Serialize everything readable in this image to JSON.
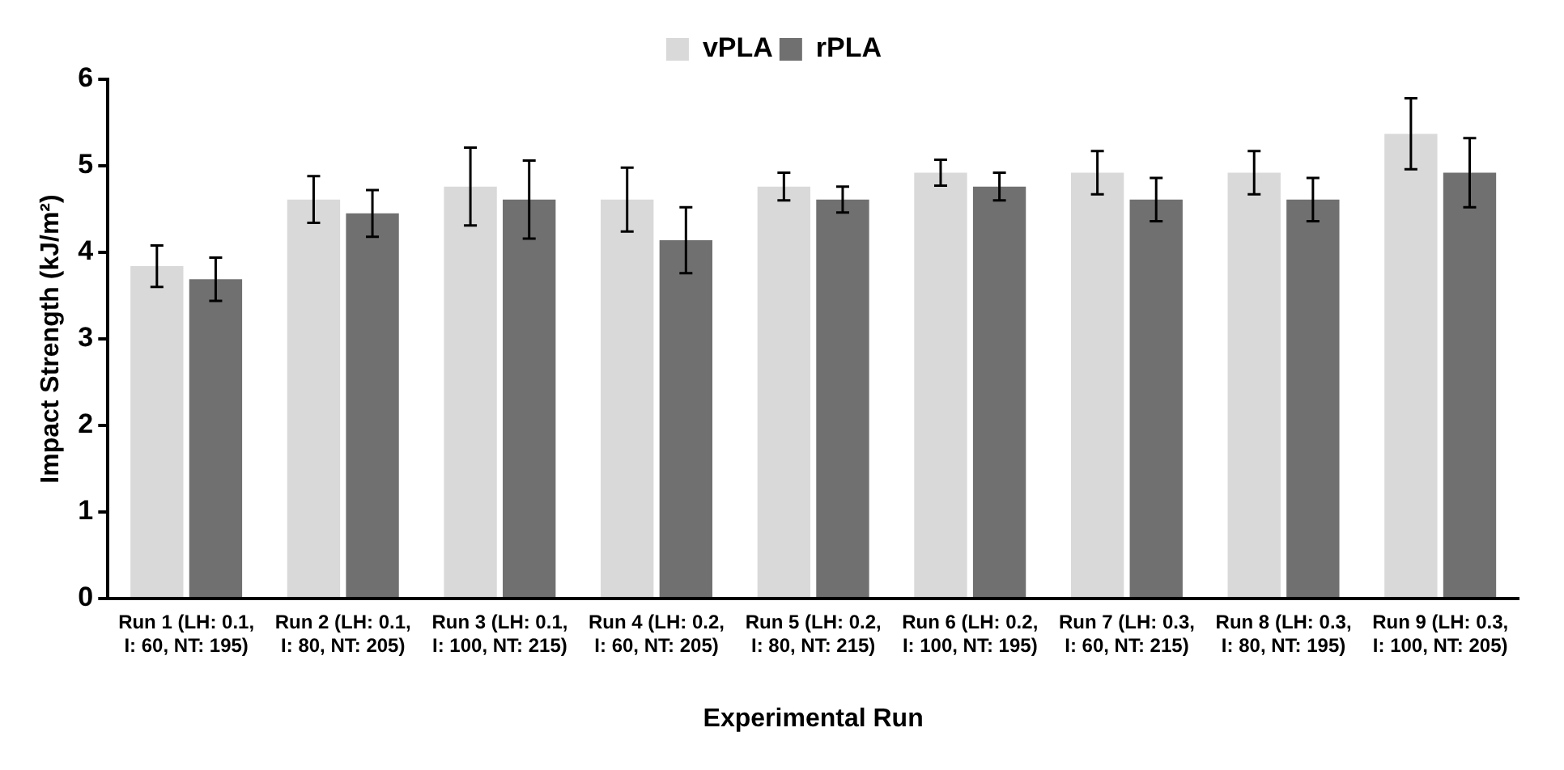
{
  "chart_data": {
    "type": "bar",
    "ylabel": "Impact Strength (kJ/m²)",
    "xlabel": "Experimental Run",
    "categories": [
      "Run 1 (LH: 0.1, I: 60, NT: 195)",
      "Run 2 (LH: 0.1, I: 80, NT: 205)",
      "Run 3 (LH: 0.1, I: 100, NT: 215)",
      "Run 4 (LH: 0.2, I: 60, NT: 205)",
      "Run 5 (LH: 0.2, I: 80, NT: 215)",
      "Run 6 (LH: 0.2, I: 100, NT: 195)",
      "Run 7 (LH: 0.3, I: 60, NT: 215)",
      "Run 8 (LH: 0.3, I: 80, NT: 195)",
      "Run 9 (LH: 0.3, I: 100, NT: 205)"
    ],
    "series": [
      {
        "name": "vPLA",
        "color": "#d9d9d9",
        "values": [
          3.84,
          4.61,
          4.76,
          4.61,
          4.76,
          4.92,
          4.92,
          4.92,
          5.37
        ],
        "errors": [
          0.24,
          0.27,
          0.45,
          0.37,
          0.16,
          0.15,
          0.25,
          0.25,
          0.41
        ]
      },
      {
        "name": "rPLA",
        "color": "#707070",
        "values": [
          3.69,
          4.45,
          4.61,
          4.14,
          4.61,
          4.76,
          4.61,
          4.61,
          4.92
        ],
        "errors": [
          0.25,
          0.27,
          0.45,
          0.38,
          0.15,
          0.16,
          0.25,
          0.25,
          0.4
        ]
      }
    ],
    "ylim": [
      0,
      6
    ],
    "yticks": [
      0,
      1,
      2,
      3,
      4,
      5,
      6
    ],
    "grid": false,
    "legend": "top"
  }
}
